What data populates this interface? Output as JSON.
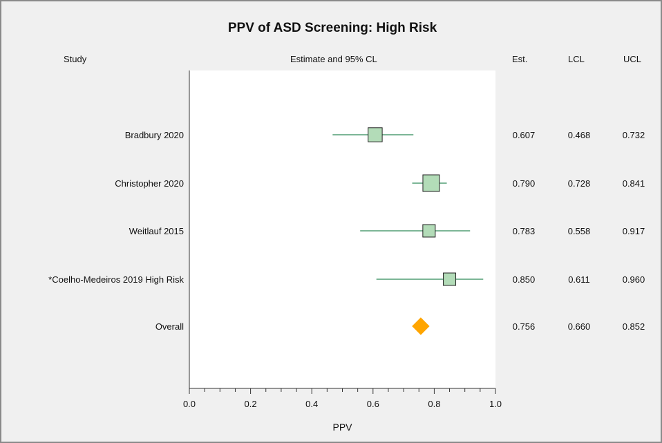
{
  "chart_data": {
    "type": "forest",
    "title": "PPV of ASD Screening: High Risk",
    "headers": {
      "study": "Study",
      "plot": "Estimate and 95% CL",
      "est": "Est.",
      "lcl": "LCL",
      "ucl": "UCL"
    },
    "xlabel": "PPV",
    "xlim": [
      0.0,
      1.0
    ],
    "xticks": [
      "0.0",
      "0.2",
      "0.4",
      "0.6",
      "0.8",
      "1.0"
    ],
    "rows": [
      {
        "study": "Bradbury 2020",
        "est": 0.607,
        "lcl": 0.468,
        "ucl": 0.732,
        "est_text": "0.607",
        "lcl_text": "0.468",
        "ucl_text": "0.732",
        "marker": "square",
        "weight": 0.7
      },
      {
        "study": "Christopher 2020",
        "est": 0.79,
        "lcl": 0.728,
        "ucl": 0.841,
        "est_text": "0.790",
        "lcl_text": "0.728",
        "ucl_text": "0.841",
        "marker": "square",
        "weight": 1.0
      },
      {
        "study": "Weitlauf 2015",
        "est": 0.783,
        "lcl": 0.558,
        "ucl": 0.917,
        "est_text": "0.783",
        "lcl_text": "0.558",
        "ucl_text": "0.917",
        "marker": "square",
        "weight": 0.5
      },
      {
        "study": "*Coelho-Medeiros 2019 High Risk",
        "est": 0.85,
        "lcl": 0.611,
        "ucl": 0.96,
        "est_text": "0.850",
        "lcl_text": "0.611",
        "ucl_text": "0.960",
        "marker": "square",
        "weight": 0.5
      },
      {
        "study": "Overall",
        "est": 0.756,
        "lcl": 0.66,
        "ucl": 0.852,
        "est_text": "0.756",
        "lcl_text": "0.660",
        "ucl_text": "0.852",
        "marker": "diamond"
      }
    ],
    "colors": {
      "square_fill": "#b3dcb8",
      "line": "#2e8b57",
      "diamond": "#ffa500",
      "panel": "#ffffff",
      "background": "#f0f0f0"
    },
    "grid": false
  }
}
